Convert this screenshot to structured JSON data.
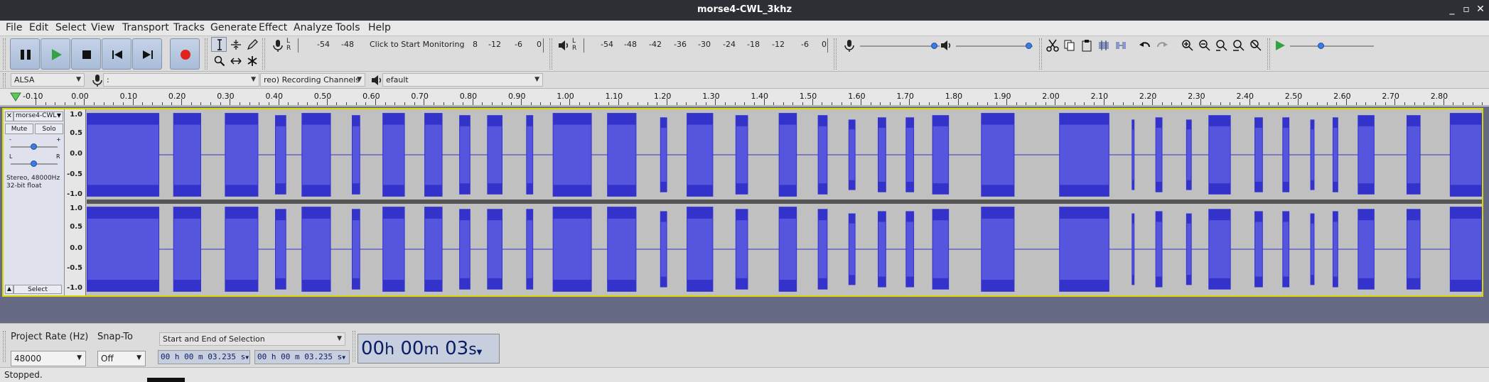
{
  "window": {
    "title": "morse4-CWL_3khz",
    "minimize": "_",
    "maximize": "▫",
    "close": "✕"
  },
  "menu": [
    "File",
    "Edit",
    "Select",
    "View",
    "Transport",
    "Tracks",
    "Generate",
    "Effect",
    "Analyze",
    "Tools",
    "Help"
  ],
  "transport": {
    "pause": "pause-icon",
    "play": "play-icon",
    "stop": "stop-icon",
    "skip_start": "skip-start-icon",
    "skip_end": "skip-end-icon",
    "record": "record-icon",
    "record_color": "#e0241b",
    "play_color": "#34a244"
  },
  "record_meter": {
    "lr": [
      "L",
      "R"
    ],
    "scale": [
      "-54",
      "-48",
      "Click to Start Monitoring",
      "8",
      "-12",
      "-6",
      "0"
    ]
  },
  "play_meter": {
    "lr": [
      "L",
      "R"
    ],
    "scale": [
      "-54",
      "-48",
      "-42",
      "-36",
      "-30",
      "-24",
      "-18",
      "-12",
      "-6",
      "0"
    ]
  },
  "devices": {
    "host": "ALSA",
    "recording_device": ":",
    "channels": "reo) Recording Channels",
    "playback_device": "efault"
  },
  "ruler": {
    "labels": [
      "-0.10",
      "0.00",
      "0.10",
      "0.20",
      "0.30",
      "0.40",
      "0.50",
      "0.60",
      "0.70",
      "0.80",
      "0.90",
      "1.00",
      "1.10",
      "1.20",
      "1.30",
      "1.40",
      "1.50",
      "1.60",
      "1.70",
      "1.80",
      "1.90",
      "2.00",
      "2.10",
      "2.20",
      "2.30",
      "2.40",
      "2.50",
      "2.60",
      "2.70",
      "2.80"
    ]
  },
  "track": {
    "name": "morse4-CWL",
    "close": "✕",
    "mute": "Mute",
    "solo": "Solo",
    "gain_minus": "-",
    "gain_plus": "+",
    "pan_left": "L",
    "pan_right": "R",
    "info_line1": "Stereo, 48000Hz",
    "info_line2": "32-bit float",
    "select": "Select",
    "collapse": "▲",
    "vscale": [
      "1.0",
      "0.5",
      "0.0",
      "-0.5",
      "-1.0"
    ],
    "wave_color": "#3333cc",
    "wave_fill": "#5555dd",
    "bg_color": "#c0c0c0",
    "segments": [
      [
        0.0,
        0.052
      ],
      [
        0.062,
        0.082
      ],
      [
        0.099,
        0.123
      ],
      [
        0.135,
        0.143
      ],
      [
        0.154,
        0.175
      ],
      [
        0.19,
        0.196
      ],
      [
        0.212,
        0.228
      ],
      [
        0.242,
        0.255
      ],
      [
        0.267,
        0.275
      ],
      [
        0.287,
        0.298
      ],
      [
        0.315,
        0.32
      ],
      [
        0.334,
        0.362
      ],
      [
        0.373,
        0.394
      ],
      [
        0.411,
        0.416
      ],
      [
        0.43,
        0.449
      ],
      [
        0.465,
        0.474
      ],
      [
        0.496,
        0.509
      ],
      [
        0.524,
        0.531
      ],
      [
        0.546,
        0.551
      ],
      [
        0.567,
        0.573
      ],
      [
        0.587,
        0.593
      ],
      [
        0.606,
        0.618
      ],
      [
        0.641,
        0.665
      ],
      [
        0.697,
        0.733
      ],
      [
        0.749,
        0.751
      ],
      [
        0.766,
        0.771
      ],
      [
        0.788,
        0.792
      ],
      [
        0.804,
        0.82
      ],
      [
        0.837,
        0.843
      ],
      [
        0.857,
        0.862
      ],
      [
        0.877,
        0.88
      ],
      [
        0.893,
        0.897
      ],
      [
        0.911,
        0.923
      ],
      [
        0.946,
        0.956
      ],
      [
        0.977,
        1.0
      ]
    ],
    "segment_amps": [
      0.95,
      0.95,
      0.95,
      0.9,
      0.95,
      0.9,
      0.95,
      0.95,
      0.9,
      0.9,
      0.9,
      0.95,
      0.95,
      0.85,
      0.95,
      0.9,
      0.95,
      0.9,
      0.8,
      0.85,
      0.85,
      0.9,
      0.95,
      0.95,
      0.8,
      0.85,
      0.8,
      0.9,
      0.85,
      0.85,
      0.8,
      0.85,
      0.9,
      0.9,
      0.95
    ]
  },
  "selection_toolbar": {
    "project_rate_label": "Project Rate (Hz)",
    "project_rate": "48000",
    "snap_label": "Snap-To",
    "snap_value": "Off",
    "selection_mode": "Start and End of Selection",
    "start_time": "00 h 00 m 03.235 s",
    "end_time": "00 h 00 m 03.235 s",
    "big_time": [
      "00",
      "h",
      "00",
      "m",
      "03",
      "s"
    ]
  },
  "status": "Stopped."
}
